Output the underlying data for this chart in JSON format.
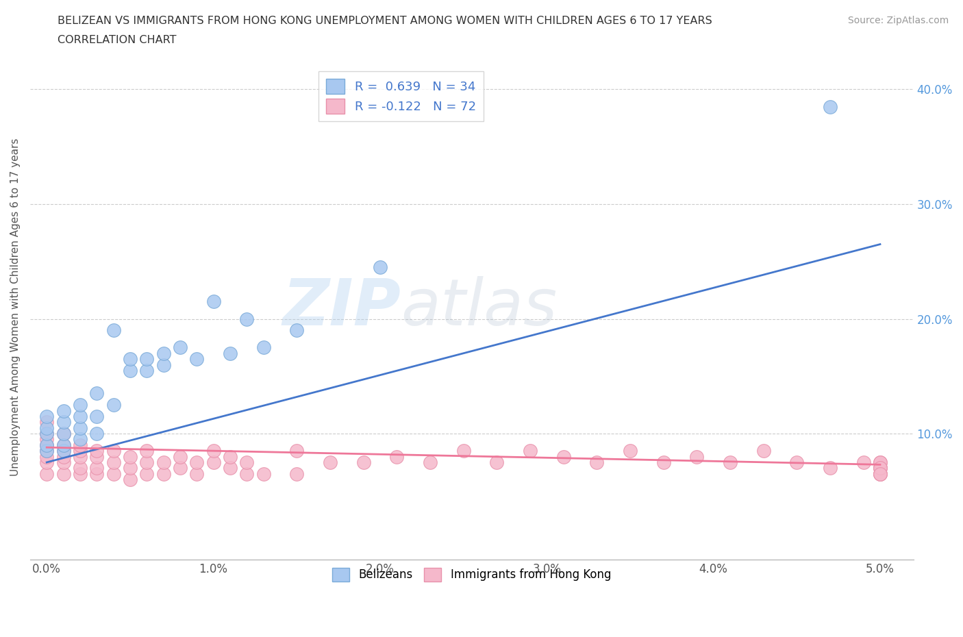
{
  "title_line1": "BELIZEAN VS IMMIGRANTS FROM HONG KONG UNEMPLOYMENT AMONG WOMEN WITH CHILDREN AGES 6 TO 17 YEARS",
  "title_line2": "CORRELATION CHART",
  "source": "Source: ZipAtlas.com",
  "ylabel": "Unemployment Among Women with Children Ages 6 to 17 years",
  "xlim": [
    -0.001,
    0.052
  ],
  "ylim": [
    -0.01,
    0.43
  ],
  "xtick_labels": [
    "0.0%",
    "1.0%",
    "2.0%",
    "3.0%",
    "4.0%",
    "5.0%"
  ],
  "xtick_vals": [
    0.0,
    0.01,
    0.02,
    0.03,
    0.04,
    0.05
  ],
  "ytick_labels": [
    "10.0%",
    "20.0%",
    "30.0%",
    "40.0%"
  ],
  "ytick_vals": [
    0.1,
    0.2,
    0.3,
    0.4
  ],
  "belizean_color": "#A8C8F0",
  "hk_color": "#F5B8CB",
  "belizean_edge": "#7AAAD8",
  "hk_edge": "#E890AA",
  "line_belizean": "#4477CC",
  "line_hk": "#EE7799",
  "legend_r1": "R =  0.639   N = 34",
  "legend_r2": "R = -0.122   N = 72",
  "background_color": "#FFFFFF",
  "grid_color": "#CCCCCC",
  "title_color": "#333333",
  "axis_color": "#555555",
  "ytick_color": "#5599DD",
  "xtick_color": "#555555",
  "belizean_x": [
    0.0,
    0.0,
    0.0,
    0.0,
    0.0,
    0.001,
    0.001,
    0.001,
    0.001,
    0.001,
    0.002,
    0.002,
    0.002,
    0.002,
    0.003,
    0.003,
    0.003,
    0.004,
    0.004,
    0.005,
    0.005,
    0.006,
    0.006,
    0.007,
    0.007,
    0.008,
    0.009,
    0.01,
    0.011,
    0.012,
    0.013,
    0.015,
    0.02,
    0.047
  ],
  "belizean_y": [
    0.085,
    0.09,
    0.1,
    0.105,
    0.115,
    0.085,
    0.09,
    0.1,
    0.11,
    0.12,
    0.095,
    0.105,
    0.115,
    0.125,
    0.1,
    0.115,
    0.135,
    0.125,
    0.19,
    0.155,
    0.165,
    0.155,
    0.165,
    0.16,
    0.17,
    0.175,
    0.165,
    0.215,
    0.17,
    0.2,
    0.175,
    0.19,
    0.245,
    0.385
  ],
  "hk_x": [
    0.0,
    0.0,
    0.0,
    0.0,
    0.0,
    0.0,
    0.0,
    0.0,
    0.001,
    0.001,
    0.001,
    0.001,
    0.001,
    0.001,
    0.002,
    0.002,
    0.002,
    0.002,
    0.002,
    0.003,
    0.003,
    0.003,
    0.003,
    0.004,
    0.004,
    0.004,
    0.005,
    0.005,
    0.005,
    0.006,
    0.006,
    0.006,
    0.007,
    0.007,
    0.008,
    0.008,
    0.009,
    0.009,
    0.01,
    0.01,
    0.011,
    0.011,
    0.012,
    0.012,
    0.013,
    0.015,
    0.015,
    0.017,
    0.019,
    0.021,
    0.023,
    0.025,
    0.027,
    0.029,
    0.031,
    0.033,
    0.035,
    0.037,
    0.039,
    0.041,
    0.043,
    0.045,
    0.047,
    0.049,
    0.05,
    0.05,
    0.05,
    0.05,
    0.05,
    0.05,
    0.05,
    0.05
  ],
  "hk_y": [
    0.065,
    0.075,
    0.08,
    0.085,
    0.09,
    0.095,
    0.1,
    0.11,
    0.065,
    0.075,
    0.08,
    0.085,
    0.09,
    0.1,
    0.065,
    0.07,
    0.08,
    0.085,
    0.09,
    0.065,
    0.07,
    0.08,
    0.085,
    0.065,
    0.075,
    0.085,
    0.06,
    0.07,
    0.08,
    0.065,
    0.075,
    0.085,
    0.065,
    0.075,
    0.07,
    0.08,
    0.065,
    0.075,
    0.075,
    0.085,
    0.07,
    0.08,
    0.065,
    0.075,
    0.065,
    0.065,
    0.085,
    0.075,
    0.075,
    0.08,
    0.075,
    0.085,
    0.075,
    0.085,
    0.08,
    0.075,
    0.085,
    0.075,
    0.08,
    0.075,
    0.085,
    0.075,
    0.07,
    0.075,
    0.065,
    0.07,
    0.075,
    0.065,
    0.07,
    0.075,
    0.07,
    0.065
  ]
}
